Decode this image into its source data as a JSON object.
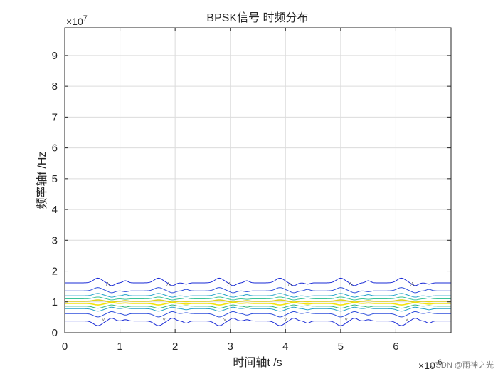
{
  "chart_data": {
    "type": "contour",
    "title": "BPSK信号 时频分布",
    "xlabel": "时间轴t /s",
    "ylabel": "频率轴f /Hz",
    "x_multiplier": "10^-6",
    "y_multiplier": "10^7",
    "xlim": [
      0,
      7
    ],
    "ylim": [
      0,
      9.9
    ],
    "xticks": [
      0,
      1,
      2,
      3,
      4,
      5,
      6
    ],
    "yticks": [
      0,
      1,
      2,
      3,
      4,
      5,
      6,
      7,
      8,
      9
    ],
    "grid": true,
    "center_frequency": 1.0,
    "symbol_transition_times": [
      0.6,
      1.7,
      2.8,
      3.9,
      5.0,
      6.1
    ],
    "contour_levels": [
      {
        "name": "outer-upper",
        "freq": 1.62,
        "color": "#1a2bd6"
      },
      {
        "name": "mid-upper",
        "freq": 1.36,
        "color": "#2e4fdc"
      },
      {
        "name": "inner-upper",
        "freq": 1.2,
        "color": "#1fa3c9"
      },
      {
        "name": "core-upper",
        "freq": 1.1,
        "color": "#3cc39a"
      },
      {
        "name": "peak-upper",
        "freq": 1.02,
        "color": "#e3d21b"
      },
      {
        "name": "peak-lower",
        "freq": 0.95,
        "color": "#f4e20c"
      },
      {
        "name": "core-lower",
        "freq": 0.86,
        "color": "#35b778"
      },
      {
        "name": "inner-lower",
        "freq": 0.78,
        "color": "#1fa3c9"
      },
      {
        "name": "mid-lower",
        "freq": 0.62,
        "color": "#2e4fdc"
      },
      {
        "name": "outer-lower",
        "freq": 0.38,
        "color": "#1a2bd6"
      }
    ],
    "markers": [
      {
        "t": 0.78,
        "f": 1.6,
        "symbol": "△"
      },
      {
        "t": 1.88,
        "f": 1.6,
        "symbol": "△"
      },
      {
        "t": 2.98,
        "f": 1.6,
        "symbol": "△"
      },
      {
        "t": 4.08,
        "f": 1.6,
        "symbol": "△"
      },
      {
        "t": 5.18,
        "f": 1.6,
        "symbol": "△"
      },
      {
        "t": 6.3,
        "f": 1.6,
        "symbol": "△"
      },
      {
        "t": 0.7,
        "f": 0.45,
        "symbol": "▿"
      },
      {
        "t": 1.8,
        "f": 0.45,
        "symbol": "▿"
      },
      {
        "t": 2.9,
        "f": 0.45,
        "symbol": "▿"
      },
      {
        "t": 4.0,
        "f": 0.45,
        "symbol": "▿"
      },
      {
        "t": 5.1,
        "f": 0.45,
        "symbol": "▿"
      },
      {
        "t": 6.2,
        "f": 0.45,
        "symbol": "▿"
      }
    ]
  },
  "watermark": "CSDN @雨神之光"
}
